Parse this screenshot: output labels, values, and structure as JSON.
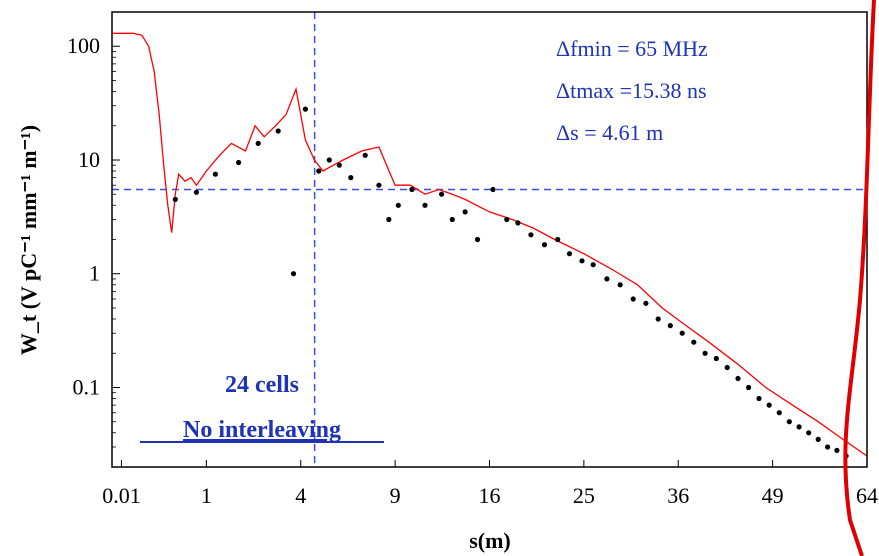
{
  "chart_data": {
    "type": "line",
    "xlabel": "s(m)",
    "ylabel": "W_t (V pC⁻¹ mm⁻¹ m⁻¹)",
    "x_scale": "sqrt",
    "y_scale": "log",
    "xlim": [
      0,
      64
    ],
    "ylim": [
      0.02,
      200
    ],
    "x_ticks": [
      {
        "value": 0.01,
        "label": "0.01"
      },
      {
        "value": 1,
        "label": "1"
      },
      {
        "value": 4,
        "label": "4"
      },
      {
        "value": 9,
        "label": "9"
      },
      {
        "value": 16,
        "label": "16"
      },
      {
        "value": 25,
        "label": "25"
      },
      {
        "value": 36,
        "label": "36"
      },
      {
        "value": 49,
        "label": "49"
      },
      {
        "value": 64,
        "label": "64"
      }
    ],
    "y_ticks": [
      {
        "value": 100,
        "label": "100"
      },
      {
        "value": 10,
        "label": "10"
      },
      {
        "value": 1,
        "label": "1"
      },
      {
        "value": 0.1,
        "label": "0.1"
      }
    ],
    "reference_lines": {
      "vertical_x": 4.61,
      "horizontal_y": 5.5,
      "color": "#3a4fe0"
    },
    "series": [
      {
        "color": "#ff0000",
        "style": "line",
        "x": [
          0.0,
          0.05,
          0.1,
          0.15,
          0.2,
          0.25,
          0.3,
          0.35,
          0.4,
          0.45,
          0.5,
          0.6,
          0.7,
          0.8,
          1.0,
          1.3,
          1.6,
          2.0,
          2.3,
          2.6,
          3.0,
          3.4,
          3.8,
          4.2,
          4.6,
          5.0,
          5.5,
          6.0,
          7.0,
          8.0,
          9.0,
          10.0,
          11.0,
          12.0,
          13.0,
          14.0,
          16.0,
          18.0,
          20.0,
          22.0,
          25.0,
          28.0,
          31.0,
          34.0,
          37.0,
          40.0,
          44.0,
          48.0,
          52.0,
          56.0,
          60.0,
          64.0
        ],
        "y": [
          130,
          130,
          125,
          100,
          60,
          25,
          9,
          4,
          2.3,
          5,
          7.5,
          6.5,
          7,
          6,
          8,
          11,
          14,
          12,
          20,
          16,
          20,
          25,
          42,
          15,
          10,
          8,
          9,
          10,
          12,
          13,
          6,
          6,
          5,
          5.5,
          5,
          4.5,
          3.5,
          3,
          2.5,
          2,
          1.5,
          1.1,
          0.8,
          0.5,
          0.35,
          0.25,
          0.16,
          0.1,
          0.07,
          0.05,
          0.035,
          0.025
        ]
      },
      {
        "color": "#000000",
        "style": "markers",
        "x": [
          0.45,
          0.8,
          1.2,
          1.8,
          2.4,
          3.1,
          3.7,
          4.2,
          4.8,
          5.3,
          5.8,
          6.4,
          7.2,
          8.0,
          8.6,
          9.2,
          10.1,
          11.0,
          12.2,
          13.0,
          14.0,
          15.0,
          16.3,
          17.5,
          18.5,
          19.7,
          21.0,
          22.3,
          23.5,
          24.8,
          26.0,
          27.5,
          29.0,
          30.5,
          32.0,
          33.5,
          35.0,
          36.5,
          38.0,
          39.5,
          41.0,
          42.5,
          44.0,
          45.5,
          47.0,
          48.5,
          50.0,
          51.5,
          53.0,
          54.5,
          56.0,
          57.5,
          59.0,
          60.5
        ],
        "y": [
          4.5,
          5.2,
          7.5,
          9.5,
          14,
          18,
          1.0,
          28,
          8,
          10,
          9,
          7,
          11,
          6,
          3,
          4,
          5.5,
          4,
          5,
          3,
          3.5,
          2,
          5.5,
          3,
          2.8,
          2.2,
          1.8,
          2,
          1.5,
          1.3,
          1.2,
          0.9,
          0.8,
          0.6,
          0.55,
          0.4,
          0.35,
          0.3,
          0.25,
          0.2,
          0.18,
          0.15,
          0.12,
          0.1,
          0.08,
          0.07,
          0.06,
          0.05,
          0.045,
          0.04,
          0.035,
          0.03,
          0.028,
          0.025
        ]
      }
    ],
    "annotations": {
      "freq": "Δfmin = 65 MHz",
      "time": "Δtmax =15.38 ns",
      "distance": "Δs = 4.61 m",
      "cells": "24 cells",
      "interleaving": "No interleaving"
    }
  }
}
